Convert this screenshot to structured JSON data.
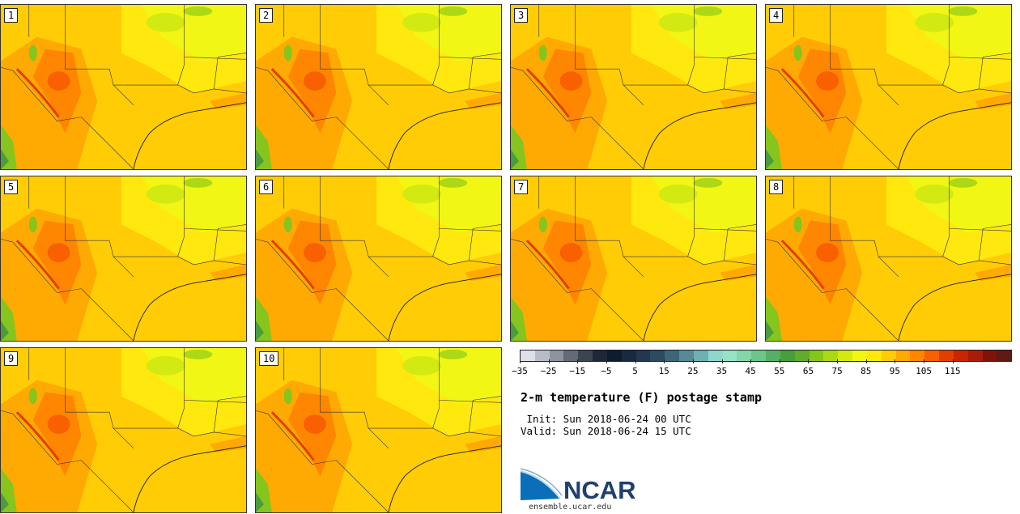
{
  "title": "2-m temperature (F) postage stamp",
  "init": " Init: Sun 2018-06-24 00 UTC",
  "valid": "Valid: Sun 2018-06-24 15 UTC",
  "members": [
    "1",
    "2",
    "3",
    "4",
    "5",
    "6",
    "7",
    "8",
    "9",
    "10"
  ],
  "colorbar": {
    "ticks": [
      "−35",
      "−25",
      "−15",
      "−5",
      "5",
      "15",
      "25",
      "35",
      "45",
      "55",
      "65",
      "75",
      "85",
      "95",
      "105",
      "115"
    ],
    "colors": [
      "#dde0e6",
      "#b8bcc6",
      "#8e939e",
      "#646a76",
      "#3c4452",
      "#1e2838",
      "#0f1b2e",
      "#172a40",
      "#22384f",
      "#2c4a60",
      "#3e6578",
      "#578a96",
      "#6fb0b2",
      "#8fd6cc",
      "#98e2c8",
      "#84d6a6",
      "#6ec48a",
      "#55b066",
      "#4a9c3c",
      "#62ac2c",
      "#86c41e",
      "#acd816",
      "#d2ea12",
      "#f2f614",
      "#ffe80e",
      "#ffcc06",
      "#ffaa02",
      "#ff8600",
      "#f86000",
      "#e23e00",
      "#c82600",
      "#a81c0a",
      "#7e1408",
      "#5e1a14"
    ]
  },
  "logo_text": "NCAR",
  "url": "ensemble.ucar.edu"
}
